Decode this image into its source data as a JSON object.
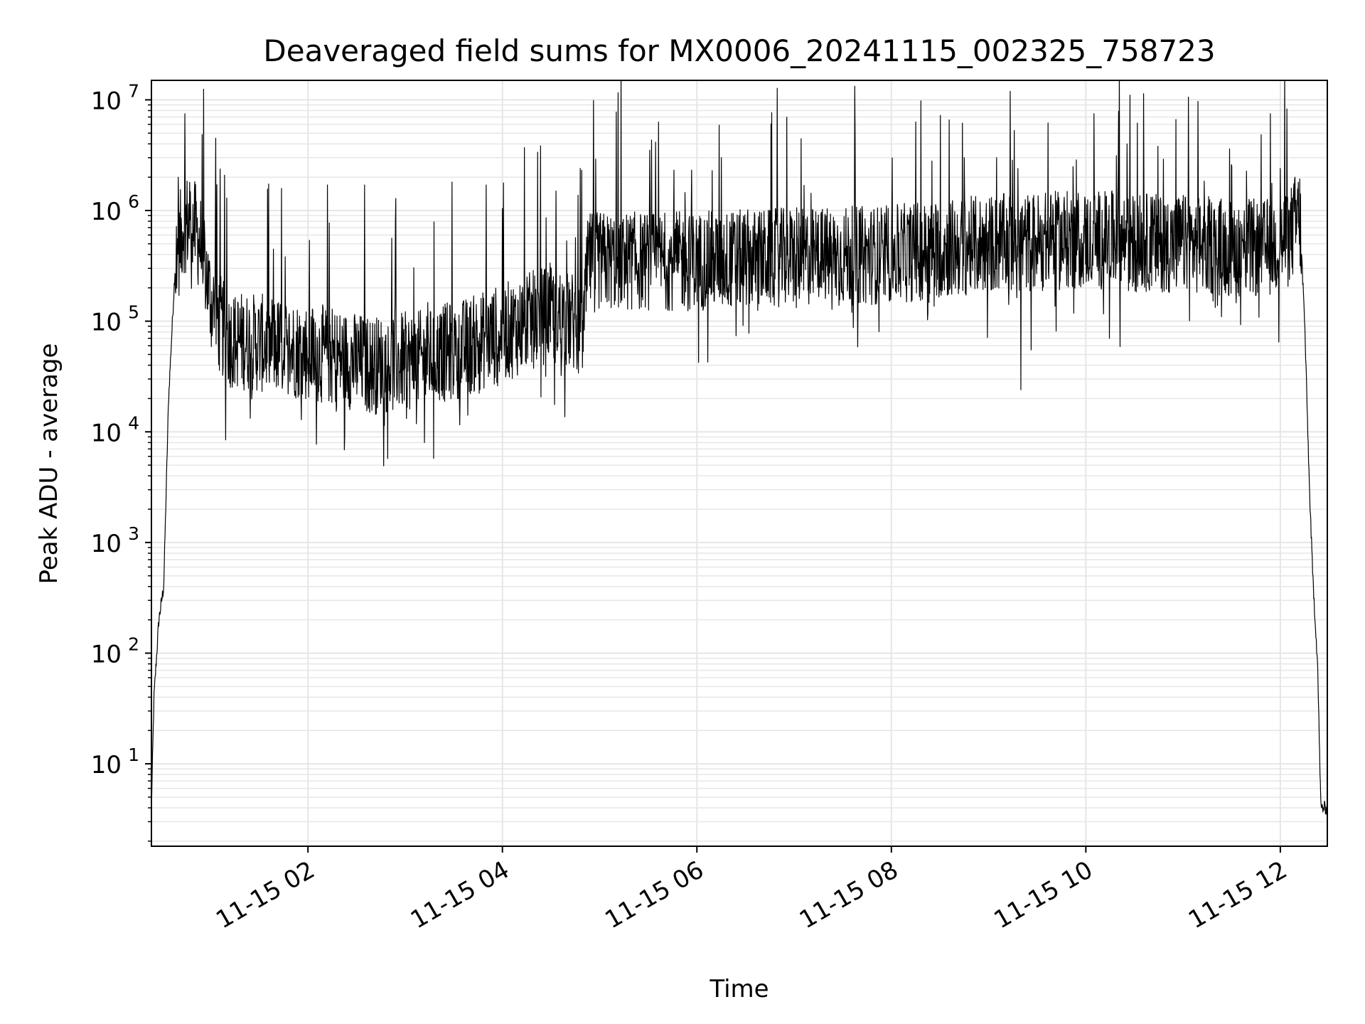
{
  "chart_data": {
    "type": "line",
    "title": "Deaveraged field sums for MX0006_20241115_002325_758723",
    "xlabel": "Time",
    "ylabel": "Peak ADU - average",
    "yscale": "log",
    "ylim": [
      1.8,
      15000000
    ],
    "xlim": [
      "2024-11-15T00:23:25",
      "2024-11-15T12:29:00"
    ],
    "x_ticks": [
      {
        "time": "2024-11-15T02:00",
        "label": "11-15 02"
      },
      {
        "time": "2024-11-15T04:00",
        "label": "11-15 04"
      },
      {
        "time": "2024-11-15T06:00",
        "label": "11-15 06"
      },
      {
        "time": "2024-11-15T08:00",
        "label": "11-15 08"
      },
      {
        "time": "2024-11-15T10:00",
        "label": "11-15 10"
      },
      {
        "time": "2024-11-15T12:00",
        "label": "11-15 12"
      }
    ],
    "y_ticks": [
      {
        "value": 10,
        "base": "10",
        "exp": "1"
      },
      {
        "value": 100,
        "base": "10",
        "exp": "2"
      },
      {
        "value": 1000,
        "base": "10",
        "exp": "3"
      },
      {
        "value": 10000,
        "base": "10",
        "exp": "4"
      },
      {
        "value": 100000,
        "base": "10",
        "exp": "5"
      },
      {
        "value": 1000000,
        "base": "10",
        "exp": "6"
      },
      {
        "value": 10000000,
        "base": "10",
        "exp": "7"
      }
    ],
    "grid": true,
    "legend": "none",
    "line_color": "#000000",
    "grid_color": "#e6e6e6",
    "series": [
      {
        "values_baseline": [
          [
            "2024-11-15T00:23:25",
            4
          ],
          [
            "2024-11-15T00:25",
            40
          ],
          [
            "2024-11-15T00:28",
            200
          ],
          [
            "2024-11-15T00:31",
            400
          ],
          [
            "2024-11-15T00:34",
            20000
          ],
          [
            "2024-11-15T00:38",
            300000
          ],
          [
            "2024-11-15T00:43",
            750000
          ],
          [
            "2024-11-15T00:48",
            800000
          ],
          [
            "2024-11-15T00:55",
            450000
          ],
          [
            "2024-11-15T01:00",
            150000
          ],
          [
            "2024-11-15T01:10",
            70000
          ],
          [
            "2024-11-15T01:40",
            60000
          ],
          [
            "2024-11-15T02:10",
            50000
          ],
          [
            "2024-11-15T02:40",
            40000
          ],
          [
            "2024-11-15T03:10",
            45000
          ],
          [
            "2024-11-15T03:40",
            60000
          ],
          [
            "2024-11-15T04:10",
            90000
          ],
          [
            "2024-11-15T04:30",
            120000
          ],
          [
            "2024-11-15T04:50",
            90000
          ],
          [
            "2024-11-15T04:53",
            350000
          ],
          [
            "2024-11-15T05:30",
            350000
          ],
          [
            "2024-11-15T06:00",
            350000
          ],
          [
            "2024-11-15T07:00",
            380000
          ],
          [
            "2024-11-15T08:00",
            400000
          ],
          [
            "2024-11-15T09:00",
            500000
          ],
          [
            "2024-11-15T10:00",
            550000
          ],
          [
            "2024-11-15T11:00",
            500000
          ],
          [
            "2024-11-15T11:50",
            450000
          ],
          [
            "2024-11-15T12:05",
            550000
          ],
          [
            "2024-11-15T12:12",
            900000
          ],
          [
            "2024-11-15T12:15",
            100000
          ],
          [
            "2024-11-15T12:18",
            3000
          ],
          [
            "2024-11-15T12:20",
            500
          ],
          [
            "2024-11-15T12:23",
            80
          ],
          [
            "2024-11-15T12:25",
            4
          ],
          [
            "2024-11-15T12:29",
            4
          ]
        ],
        "spikes": [
          [
            "2024-11-15T00:44",
            7500000
          ],
          [
            "2024-11-15T00:40",
            2000000
          ],
          [
            "2024-11-15T00:47",
            1800000
          ],
          [
            "2024-11-15T01:03",
            4500000
          ],
          [
            "2024-11-15T01:10",
            1300000
          ],
          [
            "2024-11-15T02:12",
            1700000
          ],
          [
            "2024-11-15T02:35",
            1700000
          ],
          [
            "2024-11-15T03:50",
            1700000
          ],
          [
            "2024-11-15T04:33",
            1500000
          ],
          [
            "2024-11-15T04:48",
            2400000
          ],
          [
            "2024-11-15T06:15",
            3000000
          ],
          [
            "2024-11-15T08:25",
            2800000
          ],
          [
            "2024-11-15T08:45",
            3000000
          ],
          [
            "2024-11-15T09:05",
            3000000
          ],
          [
            "2024-11-15T10:05",
            7500000
          ],
          [
            "2024-11-15T10:20",
            2200000
          ],
          [
            "2024-11-15T11:30",
            2500000
          ],
          [
            "2024-11-15T12:00",
            2400000
          ],
          [
            "2024-11-15T12:09",
            2000000
          ],
          [
            "2024-11-15T09:20",
            24000
          ],
          [
            "2024-11-15T02:45",
            18000
          ]
        ]
      }
    ]
  }
}
